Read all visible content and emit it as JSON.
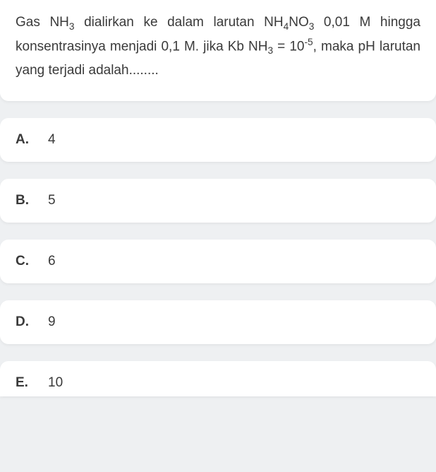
{
  "question": {
    "line1_pre": "Gas NH",
    "line1_sub1": "3",
    "line1_mid1": " dialirkan ke dalam larutan NH",
    "line1_sub2": "4",
    "line1_mid2": "NO",
    "line1_sub3": "3",
    "line1_post": " 0,01 M hingga konsentrasinya menjadi 0,1 M. jika Kb NH",
    "line2_sub": "3",
    "line2_mid": " = 10",
    "line2_sup": "-5",
    "line2_post": ", maka pH larutan yang terjadi adalah........"
  },
  "options": [
    {
      "letter": "A.",
      "value": "4"
    },
    {
      "letter": "B.",
      "value": "5"
    },
    {
      "letter": "C.",
      "value": "6"
    },
    {
      "letter": "D.",
      "value": "9"
    },
    {
      "letter": "E.",
      "value": "10"
    }
  ],
  "colors": {
    "page_bg": "#eef0f2",
    "card_bg": "#ffffff",
    "text": "#3a3a3a"
  }
}
